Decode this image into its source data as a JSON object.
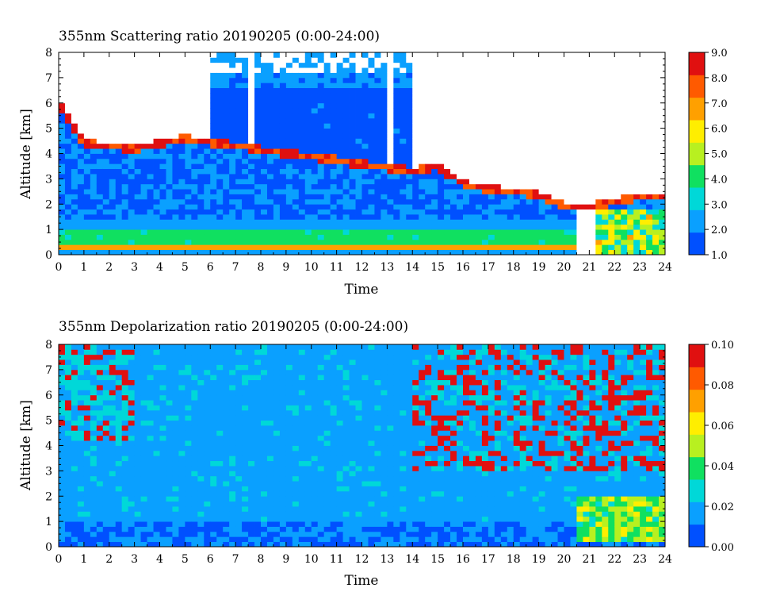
{
  "chart_data": [
    {
      "type": "heatmap",
      "title": "355nm Scattering ratio  20190205 (0:00-24:00)",
      "xlabel": "Time",
      "ylabel": "Altitude [km]",
      "xlim": [
        0,
        24
      ],
      "ylim": [
        0,
        8
      ],
      "x_ticks": [
        "0",
        "1",
        "2",
        "3",
        "4",
        "5",
        "6",
        "7",
        "8",
        "9",
        "10",
        "11",
        "12",
        "13",
        "14",
        "15",
        "16",
        "17",
        "18",
        "19",
        "20",
        "21",
        "22",
        "23",
        "24"
      ],
      "y_ticks": [
        "0",
        "1",
        "2",
        "3",
        "4",
        "5",
        "6",
        "7",
        "8"
      ],
      "colorbar": {
        "range": [
          1.0,
          9.0
        ],
        "tick_labels": [
          "1.0",
          "2.0",
          "3.0",
          "4.0",
          "5.0",
          "6.0",
          "7.0",
          "8.0",
          "9.0"
        ],
        "colors": [
          "#0050ff",
          "#0aa0ff",
          "#00d8d8",
          "#10e060",
          "#b8f020",
          "#ffee00",
          "#ffa000",
          "#ff5a00",
          "#e01010"
        ]
      },
      "missing_color": "#ffffff",
      "features": {
        "near_surface_layer_km": [
          0.2,
          0.9
        ],
        "cloud_base_km_by_hour": [
          [
            0,
            6.0
          ],
          [
            1,
            4.4
          ],
          [
            2,
            4.3
          ],
          [
            3,
            4.2
          ],
          [
            4,
            4.4
          ],
          [
            5,
            4.6
          ],
          [
            14,
            3.3
          ],
          [
            15,
            3.5
          ],
          [
            16,
            2.8
          ],
          [
            17,
            2.6
          ],
          [
            18,
            2.5
          ],
          [
            19,
            2.4
          ],
          [
            20,
            1.9
          ],
          [
            21,
            1.9
          ],
          [
            22,
            2.1
          ],
          [
            23,
            2.3
          ],
          [
            24,
            2.3
          ]
        ],
        "no_signal_above_cloud": true
      }
    },
    {
      "type": "heatmap",
      "title": "355nm Depolarization ratio  20190205 (0:00-24:00)",
      "xlabel": "Time",
      "ylabel": "Altitude [km]",
      "xlim": [
        0,
        24
      ],
      "ylim": [
        0,
        8
      ],
      "x_ticks": [
        "0",
        "1",
        "2",
        "3",
        "4",
        "5",
        "6",
        "7",
        "8",
        "9",
        "10",
        "11",
        "12",
        "13",
        "14",
        "15",
        "16",
        "17",
        "18",
        "19",
        "20",
        "21",
        "22",
        "23",
        "24"
      ],
      "y_ticks": [
        "0",
        "1",
        "2",
        "3",
        "4",
        "5",
        "6",
        "7",
        "8"
      ],
      "colorbar": {
        "range": [
          0.0,
          0.1
        ],
        "tick_labels": [
          "0.00",
          "0.02",
          "0.04",
          "0.06",
          "0.08",
          "0.10"
        ],
        "colors": [
          "#0050ff",
          "#0aa0ff",
          "#00d8d8",
          "#10e060",
          "#b8f020",
          "#ffee00",
          "#ffa000",
          "#ff5a00",
          "#e01010"
        ]
      },
      "features": {
        "background_level": 0.015,
        "high_depol_region": {
          "time_h": [
            14,
            24
          ],
          "alt_km": [
            3,
            8
          ]
        },
        "low_cloud_region": {
          "time_h": [
            20.5,
            24
          ],
          "alt_km": [
            0.2,
            2
          ]
        }
      }
    }
  ]
}
